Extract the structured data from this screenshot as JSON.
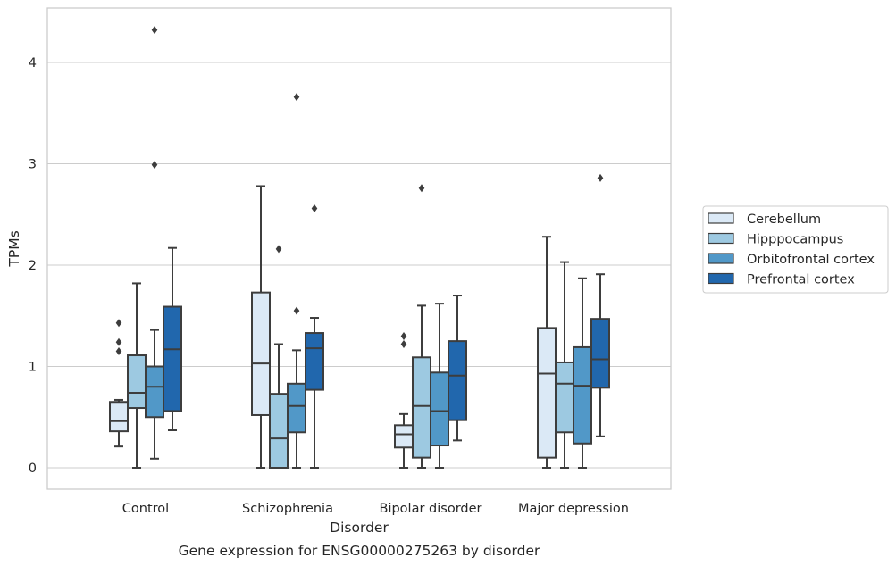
{
  "caption": "Gene expression for ENSG00000275263 by disorder",
  "chart_data": {
    "type": "box",
    "xlabel": "Disorder",
    "ylabel": "TPMs",
    "ylim": [
      -0.2,
      4.55
    ],
    "yticks": [
      0,
      1,
      2,
      3,
      4
    ],
    "grid": "horizontal",
    "legend_position": "right",
    "categories": [
      "Control",
      "Schizophrenia",
      "Bipolar disorder",
      "Major depression"
    ],
    "series": [
      {
        "name": "Cerebellum",
        "color": "#dbe9f6",
        "boxes": [
          {
            "whislo": 0.21,
            "q1": 0.36,
            "med": 0.46,
            "q3": 0.65,
            "whishi": 0.67,
            "fliers": [
              1.15,
              1.24,
              1.43
            ]
          },
          {
            "whislo": 0.0,
            "q1": 0.52,
            "med": 1.03,
            "q3": 1.73,
            "whishi": 2.78,
            "fliers": []
          },
          {
            "whislo": 0.0,
            "q1": 0.2,
            "med": 0.33,
            "q3": 0.42,
            "whishi": 0.53,
            "fliers": [
              1.22,
              1.3
            ]
          },
          {
            "whislo": 0.0,
            "q1": 0.1,
            "med": 0.93,
            "q3": 1.38,
            "whishi": 2.28,
            "fliers": []
          }
        ]
      },
      {
        "name": "Hipppocampus",
        "color": "#9dc9e1",
        "boxes": [
          {
            "whislo": 0.0,
            "q1": 0.59,
            "med": 0.74,
            "q3": 1.11,
            "whishi": 1.82,
            "fliers": []
          },
          {
            "whislo": 0.0,
            "q1": 0.0,
            "med": 0.29,
            "q3": 0.73,
            "whishi": 1.22,
            "fliers": [
              2.16
            ]
          },
          {
            "whislo": 0.0,
            "q1": 0.1,
            "med": 0.61,
            "q3": 1.09,
            "whishi": 1.6,
            "fliers": [
              2.76
            ]
          },
          {
            "whislo": 0.0,
            "q1": 0.35,
            "med": 0.83,
            "q3": 1.04,
            "whishi": 2.03,
            "fliers": []
          }
        ]
      },
      {
        "name": "Orbitofrontal cortex",
        "color": "#5198c8",
        "boxes": [
          {
            "whislo": 0.09,
            "q1": 0.5,
            "med": 0.8,
            "q3": 1.0,
            "whishi": 1.36,
            "fliers": [
              2.99,
              4.32
            ]
          },
          {
            "whislo": 0.0,
            "q1": 0.35,
            "med": 0.61,
            "q3": 0.83,
            "whishi": 1.16,
            "fliers": [
              1.55,
              3.66
            ]
          },
          {
            "whislo": 0.0,
            "q1": 0.22,
            "med": 0.56,
            "q3": 0.94,
            "whishi": 1.62,
            "fliers": []
          },
          {
            "whislo": 0.0,
            "q1": 0.24,
            "med": 0.81,
            "q3": 1.19,
            "whishi": 1.87,
            "fliers": []
          }
        ]
      },
      {
        "name": "Prefrontal cortex",
        "color": "#2167ad",
        "boxes": [
          {
            "whislo": 0.37,
            "q1": 0.56,
            "med": 1.17,
            "q3": 1.59,
            "whishi": 2.17,
            "fliers": []
          },
          {
            "whislo": 0.0,
            "q1": 0.77,
            "med": 1.18,
            "q3": 1.33,
            "whishi": 1.48,
            "fliers": [
              2.56
            ]
          },
          {
            "whislo": 0.27,
            "q1": 0.47,
            "med": 0.91,
            "q3": 1.25,
            "whishi": 1.7,
            "fliers": []
          },
          {
            "whislo": 0.31,
            "q1": 0.79,
            "med": 1.07,
            "q3": 1.47,
            "whishi": 1.91,
            "fliers": [
              2.86
            ]
          }
        ]
      }
    ]
  }
}
